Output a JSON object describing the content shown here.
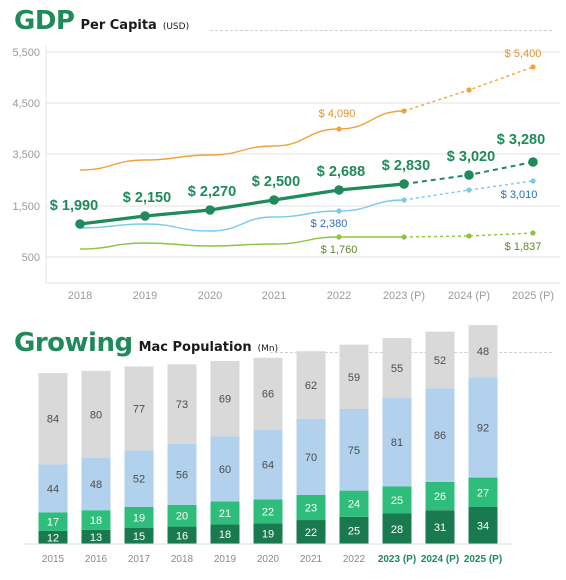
{
  "gdp_title": {
    "main": "GDP",
    "sub": "Per Capita",
    "unit": "(USD)"
  },
  "mac_title": {
    "main": "Growing",
    "sub": "Mac Population",
    "unit": "(Mn)"
  },
  "colors": {
    "main_line": "#1f8a5b",
    "orange": "#f2a23a",
    "blue": "#7ac9ee",
    "green": "#8cc63f",
    "bar_gray": "#d9d9d9",
    "bar_blue": "#b1d1ec",
    "bar_green": "#2ebd7a",
    "bar_dark": "#1a7a4f"
  },
  "chart_data": [
    {
      "type": "line",
      "title": "GDP Per Capita (USD)",
      "x": [
        "2018",
        "2019",
        "2020",
        "2021",
        "2022",
        "2023 (P)",
        "2024 (P)",
        "2025 (P)"
      ],
      "y_ticks": [
        "5,500",
        "4,500",
        "3,500",
        "1,500",
        "500"
      ],
      "grid": true,
      "series": [
        {
          "key": "main",
          "values": [
            1990,
            2150,
            2270,
            2500,
            2688,
            2830,
            3020,
            3280
          ],
          "labels": [
            "$ 1,990",
            "$ 2,150",
            "$ 2,270",
            "$ 2,500",
            "$ 2,688",
            "$ 2,830",
            "$ 3,020",
            "$ 3,280"
          ]
        },
        {
          "key": "orange",
          "values": [
            2850,
            3000,
            3120,
            3350,
            4090,
            4380,
            4800,
            5400
          ],
          "labels": {
            "4": "$ 4,090",
            "7": "$ 5,400"
          }
        },
        {
          "key": "blue",
          "values": [
            1860,
            1930,
            1830,
            2200,
            2380,
            2580,
            2760,
            3010
          ],
          "labels": {
            "4": "$ 2,380",
            "7": "$ 3,010"
          }
        },
        {
          "key": "green",
          "values": [
            1130,
            1250,
            1150,
            1380,
            1760,
            1760,
            1790,
            1837
          ],
          "labels": {
            "4": "$ 1,760",
            "7": "$ 1,837"
          }
        }
      ]
    },
    {
      "type": "bar",
      "stacked": true,
      "title": "Growing Mac Population (Mn)",
      "categories": [
        "2015",
        "2016",
        "2017",
        "2018",
        "2019",
        "2020",
        "2021",
        "2022",
        "2023 (P)",
        "2024 (P)",
        "2025 (P)"
      ],
      "series": [
        {
          "key": "dark",
          "values": [
            12,
            13,
            15,
            16,
            18,
            19,
            22,
            25,
            28,
            31,
            34
          ]
        },
        {
          "key": "green",
          "values": [
            17,
            18,
            19,
            20,
            21,
            22,
            23,
            24,
            25,
            26,
            27
          ]
        },
        {
          "key": "blue",
          "values": [
            44,
            48,
            52,
            56,
            60,
            64,
            70,
            75,
            81,
            86,
            92
          ]
        },
        {
          "key": "gray",
          "values": [
            84,
            80,
            77,
            73,
            69,
            66,
            62,
            59,
            55,
            52,
            48
          ]
        }
      ]
    }
  ]
}
